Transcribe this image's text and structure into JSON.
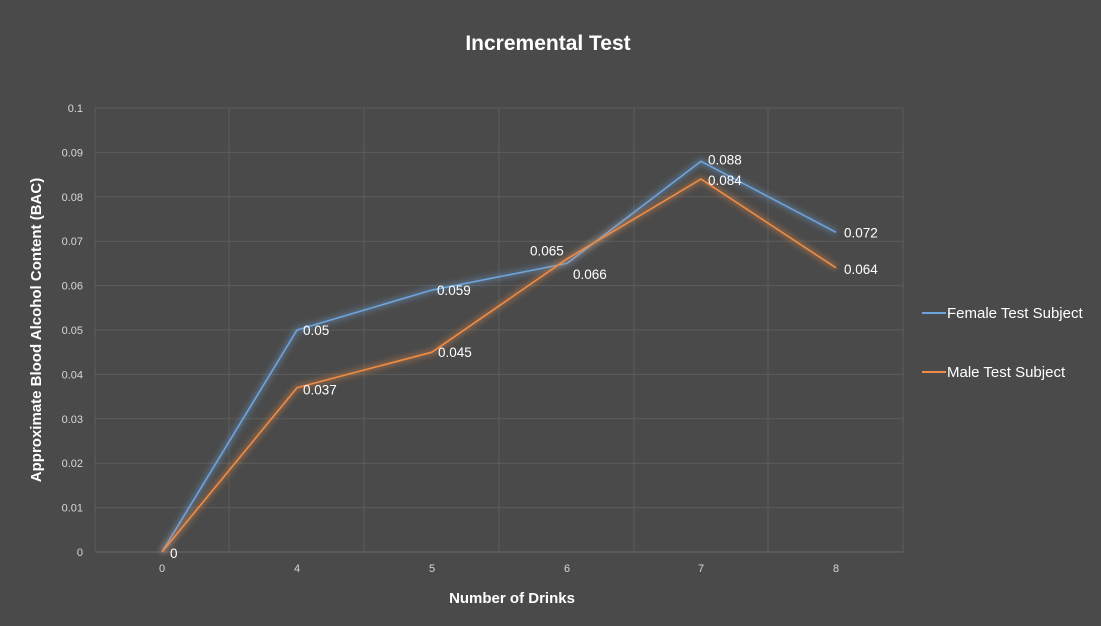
{
  "chart_data": {
    "type": "line",
    "title": "Incremental Test",
    "xlabel": "Number of Drinks",
    "ylabel": "Approximate Blood Alcohol Content (BAC)",
    "categories": [
      "0",
      "4",
      "5",
      "6",
      "7",
      "8"
    ],
    "y_ticks": [
      "0",
      "0.01",
      "0.02",
      "0.03",
      "0.04",
      "0.05",
      "0.06",
      "0.07",
      "0.08",
      "0.09",
      "0.1"
    ],
    "ylim": [
      0,
      0.1
    ],
    "grid": true,
    "legend_position": "right",
    "series": [
      {
        "name": "Female Test Subject",
        "color": "#6fa3dc",
        "values": [
          0,
          0.05,
          0.059,
          0.065,
          0.088,
          0.072
        ],
        "labels": [
          "0",
          "0.05",
          "0.059",
          "0.065",
          "0.088",
          "0.072"
        ]
      },
      {
        "name": "Male Test Subject",
        "color": "#ee8c45",
        "values": [
          0,
          0.037,
          0.045,
          0.066,
          0.084,
          0.064
        ],
        "labels": [
          "",
          "0.037",
          "0.045",
          "0.066",
          "0.084",
          "0.064"
        ]
      }
    ]
  }
}
